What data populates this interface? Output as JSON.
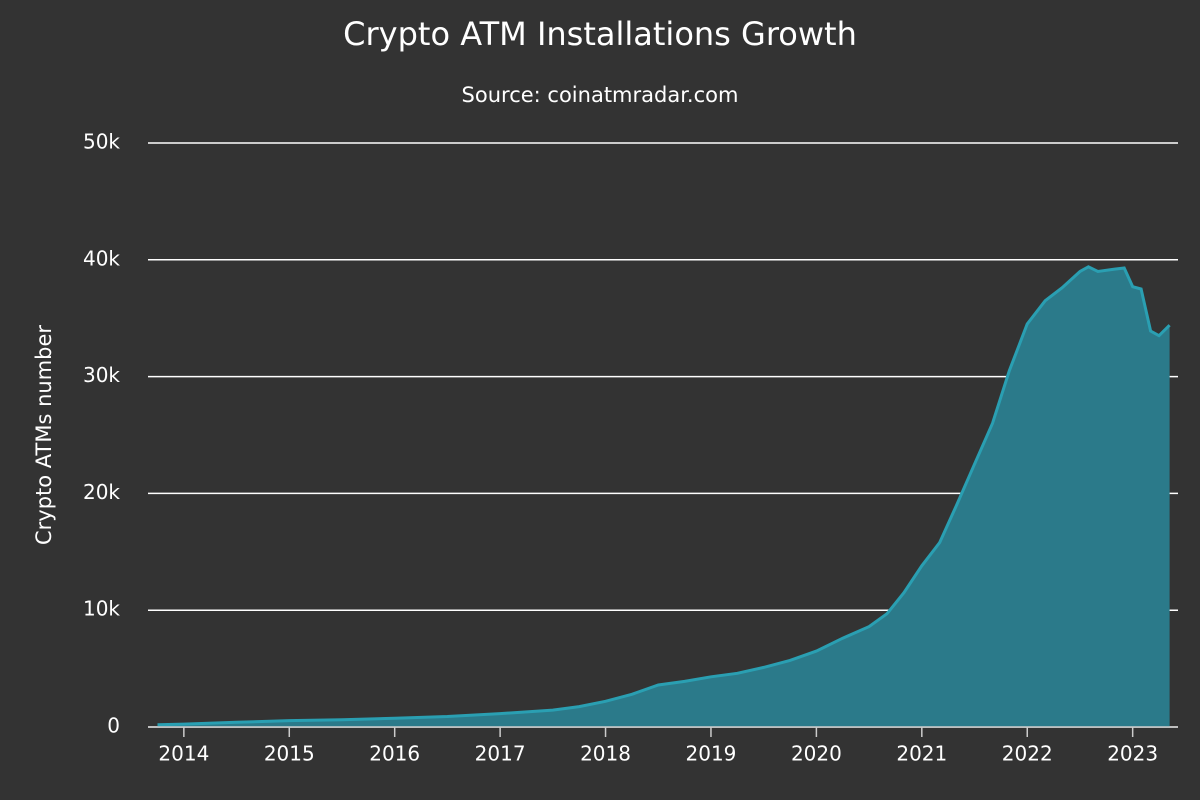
{
  "chart_data": {
    "type": "area",
    "title": "Crypto ATM Installations Growth",
    "subtitle": "Source: coinatmradar.com",
    "ylabel": "Crypto ATMs number",
    "x": [
      2013.75,
      2014.0,
      2014.5,
      2015.0,
      2015.5,
      2016.0,
      2016.5,
      2017.0,
      2017.5,
      2017.75,
      2018.0,
      2018.25,
      2018.5,
      2018.75,
      2019.0,
      2019.25,
      2019.5,
      2019.75,
      2020.0,
      2020.25,
      2020.5,
      2020.67,
      2020.83,
      2021.0,
      2021.17,
      2021.33,
      2021.5,
      2021.67,
      2021.83,
      2022.0,
      2022.17,
      2022.33,
      2022.5,
      2022.58,
      2022.67,
      2022.83,
      2022.92,
      2023.0,
      2023.08,
      2023.17,
      2023.25,
      2023.35
    ],
    "values": [
      200,
      250,
      400,
      550,
      620,
      750,
      900,
      1150,
      1450,
      1750,
      2200,
      2800,
      3600,
      3900,
      4300,
      4600,
      5100,
      5700,
      6500,
      7600,
      8600,
      9700,
      11500,
      13800,
      15800,
      19000,
      22500,
      26000,
      30500,
      34500,
      36500,
      37600,
      39000,
      39400,
      39000,
      39200,
      39300,
      37700,
      37500,
      33900,
      33500,
      34400
    ],
    "color": "#2b7a8a",
    "line_color": "#2a9fb2",
    "xlim": [
      2013.66,
      2023.43
    ],
    "xticks": [
      2014,
      2015,
      2016,
      2017,
      2018,
      2019,
      2020,
      2021,
      2022,
      2023
    ],
    "ylim": [
      0,
      50000
    ],
    "yticks": [
      0,
      {
        "value": 10000,
        "label": "10k"
      },
      {
        "value": 20000,
        "label": "20k"
      },
      {
        "value": 30000,
        "label": "30k"
      },
      {
        "value": 40000,
        "label": "40k"
      },
      {
        "value": 50000,
        "label": "50k"
      }
    ],
    "grid": true
  }
}
